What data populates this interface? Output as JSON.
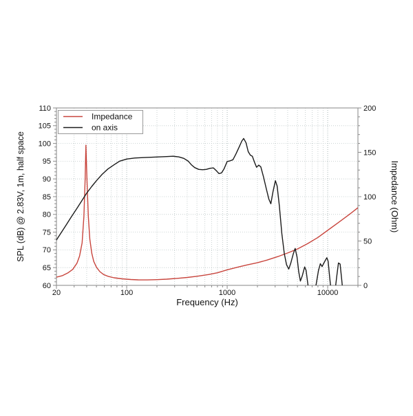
{
  "chart_data": {
    "type": "line",
    "title": "",
    "xlabel": "Frequency (Hz)",
    "ylabel_left": "SPL (dB) @ 2.83V, 1m, half space",
    "ylabel_right": "Impedance (Ohm)",
    "x_scale": "log",
    "xlim": [
      20,
      20000
    ],
    "x_major_ticks": [
      20,
      100,
      1000,
      10000
    ],
    "ylim_left": [
      60,
      110
    ],
    "y_left_major_step": 5,
    "y_left_minor_step": 1,
    "ylim_right": [
      0,
      200
    ],
    "y_right_major_step": 50,
    "y_right_minor_step": 10,
    "grid": true,
    "legend": {
      "position": "top-left",
      "entries": [
        {
          "label": "Impedance",
          "color": "#c8443c"
        },
        {
          "label": "on axis",
          "color": "#1a1a1a"
        }
      ]
    },
    "series": [
      {
        "name": "Impedance",
        "axis": "right",
        "unit": "Ohm",
        "color": "#c8443c",
        "points": [
          [
            20,
            9.2
          ],
          [
            23,
            11
          ],
          [
            26,
            14
          ],
          [
            29,
            18
          ],
          [
            32,
            25
          ],
          [
            34,
            33
          ],
          [
            36,
            48
          ],
          [
            37.5,
            78
          ],
          [
            38.6,
            120
          ],
          [
            39.3,
            158
          ],
          [
            40.3,
            118
          ],
          [
            41.5,
            78
          ],
          [
            43,
            52
          ],
          [
            45,
            36
          ],
          [
            47,
            27
          ],
          [
            50,
            20.5
          ],
          [
            54,
            15.5
          ],
          [
            59,
            12.2
          ],
          [
            66,
            10
          ],
          [
            75,
            8.5
          ],
          [
            90,
            7.4
          ],
          [
            110,
            6.6
          ],
          [
            130,
            6.2
          ],
          [
            160,
            6.1
          ],
          [
            200,
            6.4
          ],
          [
            250,
            7.0
          ],
          [
            320,
            7.9
          ],
          [
            400,
            8.9
          ],
          [
            500,
            10.2
          ],
          [
            650,
            12.2
          ],
          [
            800,
            14.2
          ],
          [
            1000,
            17.5
          ],
          [
            1300,
            20.8
          ],
          [
            1600,
            23.2
          ],
          [
            2000,
            25.5
          ],
          [
            2500,
            28.5
          ],
          [
            3200,
            32.5
          ],
          [
            4000,
            36.5
          ],
          [
            5000,
            41
          ],
          [
            6300,
            47
          ],
          [
            8000,
            54
          ],
          [
            10000,
            62
          ],
          [
            12500,
            70
          ],
          [
            16000,
            79
          ],
          [
            20000,
            87.5
          ]
        ]
      },
      {
        "name": "on axis",
        "axis": "left",
        "unit": "dB SPL",
        "color": "#1a1a1a",
        "points": [
          [
            20,
            72.8
          ],
          [
            22,
            74.6
          ],
          [
            25,
            77.0
          ],
          [
            28,
            79.2
          ],
          [
            32,
            81.7
          ],
          [
            36,
            84.0
          ],
          [
            40,
            86.0
          ],
          [
            45,
            87.9
          ],
          [
            50,
            89.5
          ],
          [
            57,
            91.3
          ],
          [
            65,
            92.8
          ],
          [
            75,
            94.0
          ],
          [
            85,
            95.0
          ],
          [
            100,
            95.6
          ],
          [
            120,
            95.9
          ],
          [
            145,
            96.0
          ],
          [
            175,
            96.1
          ],
          [
            210,
            96.2
          ],
          [
            250,
            96.3
          ],
          [
            290,
            96.4
          ],
          [
            330,
            96.2
          ],
          [
            370,
            95.8
          ],
          [
            410,
            95.0
          ],
          [
            440,
            94.0
          ],
          [
            475,
            93.2
          ],
          [
            520,
            92.7
          ],
          [
            570,
            92.6
          ],
          [
            620,
            92.7
          ],
          [
            680,
            93.0
          ],
          [
            730,
            93.1
          ],
          [
            780,
            92.3
          ],
          [
            830,
            91.5
          ],
          [
            880,
            91.7
          ],
          [
            930,
            92.8
          ],
          [
            1000,
            94.9
          ],
          [
            1070,
            95.1
          ],
          [
            1140,
            95.4
          ],
          [
            1220,
            97.0
          ],
          [
            1310,
            98.9
          ],
          [
            1400,
            100.7
          ],
          [
            1460,
            101.4
          ],
          [
            1540,
            100.2
          ],
          [
            1620,
            97.7
          ],
          [
            1700,
            96.7
          ],
          [
            1780,
            96.4
          ],
          [
            1870,
            94.7
          ],
          [
            1960,
            93.3
          ],
          [
            2060,
            93.9
          ],
          [
            2160,
            93.4
          ],
          [
            2300,
            90.5
          ],
          [
            2450,
            87.2
          ],
          [
            2600,
            84.3
          ],
          [
            2720,
            83.0
          ],
          [
            2860,
            86.5
          ],
          [
            3020,
            89.5
          ],
          [
            3140,
            88.0
          ],
          [
            3300,
            82.5
          ],
          [
            3500,
            74.5
          ],
          [
            3700,
            69.0
          ],
          [
            3900,
            65.8
          ],
          [
            4100,
            64.6
          ],
          [
            4300,
            66.3
          ],
          [
            4550,
            68.9
          ],
          [
            4750,
            70.4
          ],
          [
            4950,
            68.0
          ],
          [
            5150,
            63.8
          ],
          [
            5350,
            61.2
          ],
          [
            5600,
            62.8
          ],
          [
            5900,
            65.2
          ],
          [
            6100,
            64.2
          ],
          [
            6300,
            61.0
          ],
          [
            6550,
            57.5
          ],
          [
            6900,
            56.0
          ],
          [
            7300,
            57.0
          ],
          [
            7700,
            60.5
          ],
          [
            8100,
            64.2
          ],
          [
            8450,
            66.1
          ],
          [
            8800,
            65.3
          ],
          [
            9300,
            66.6
          ],
          [
            9800,
            67.8
          ],
          [
            10100,
            66.8
          ],
          [
            10500,
            62.0
          ],
          [
            10900,
            57.5
          ],
          [
            11400,
            56.5
          ],
          [
            11900,
            59.0
          ],
          [
            12300,
            62.5
          ],
          [
            12800,
            66.3
          ],
          [
            13300,
            66.0
          ],
          [
            13800,
            61.5
          ],
          [
            14300,
            57.0
          ],
          [
            14700,
            52.0
          ]
        ]
      }
    ]
  },
  "colors": {
    "background": "#ffffff",
    "frame": "#9a9a9a",
    "grid_minor": "#bcc6c6",
    "grid_major": "#a7b5b5",
    "tick": "#8a8a8a",
    "text": "#111111",
    "impedance_line": "#c8443c",
    "on_axis_line": "#1a1a1a",
    "legend_border": "#999999",
    "legend_background": "#ffffff"
  }
}
